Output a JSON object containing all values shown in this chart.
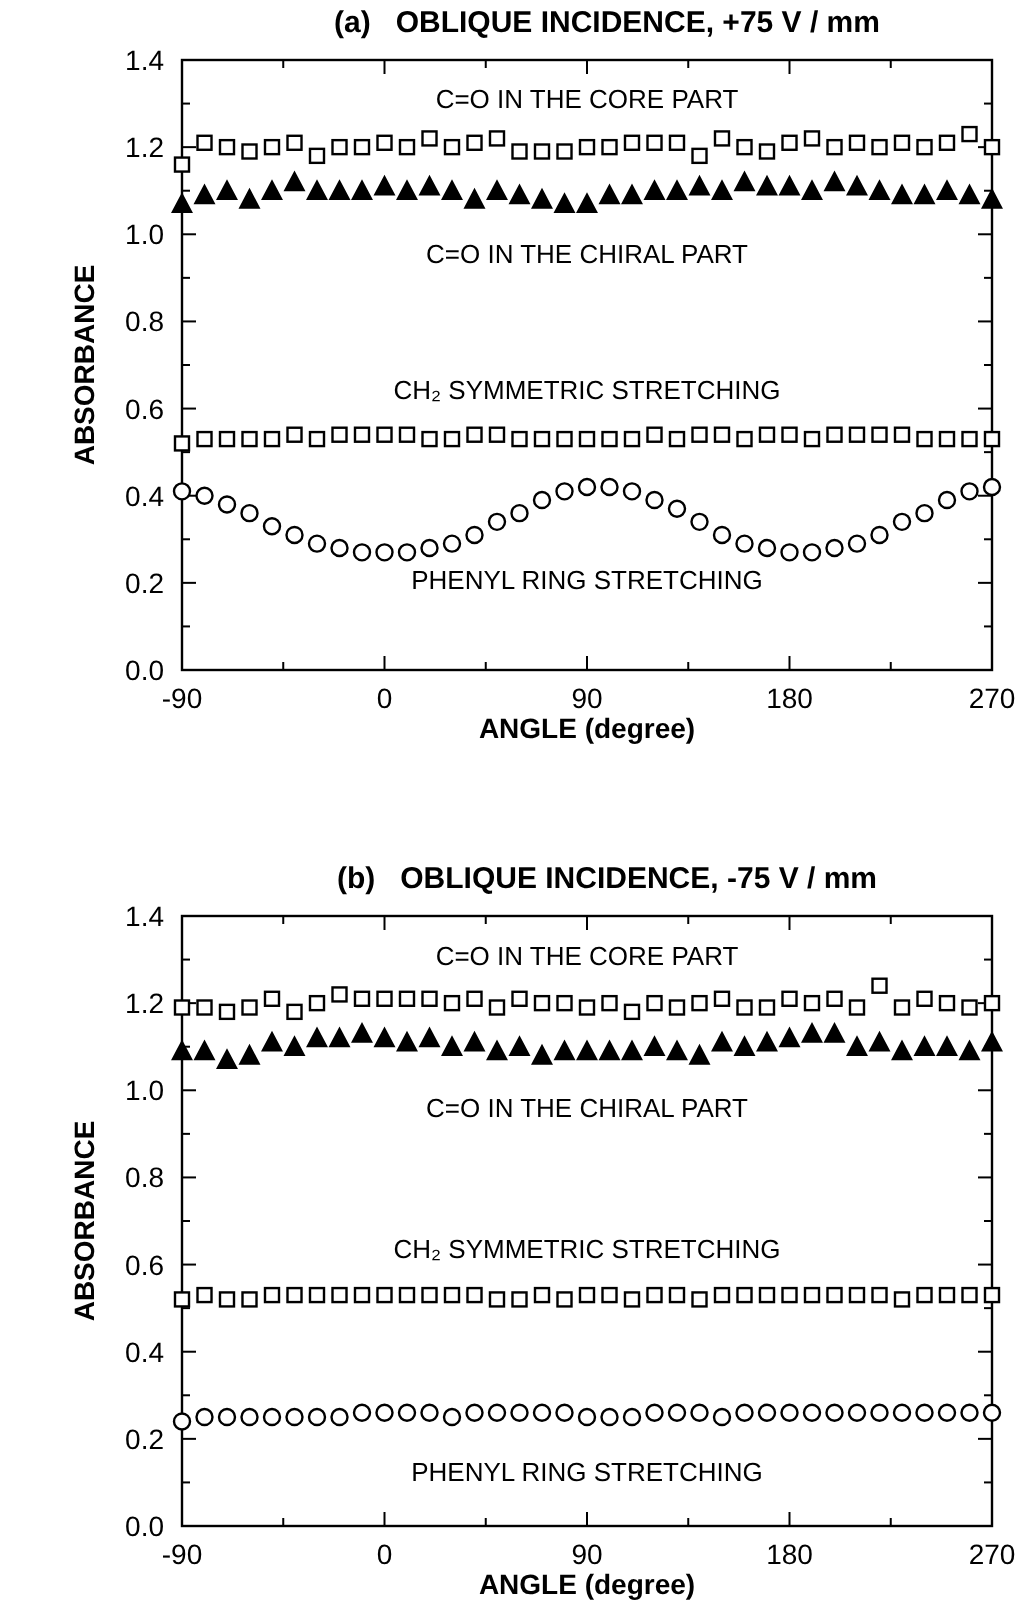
{
  "chart_data": [
    {
      "type": "scatter",
      "title": "(a)   OBLIQUE INCIDENCE, +75 V / mm",
      "xlabel": "ANGLE (degree)",
      "ylabel": "ABSORBANCE",
      "x": [
        -90,
        -80,
        -70,
        -60,
        -50,
        -40,
        -30,
        -20,
        -10,
        0,
        10,
        20,
        30,
        40,
        50,
        60,
        70,
        80,
        90,
        100,
        110,
        120,
        130,
        140,
        150,
        160,
        170,
        180,
        190,
        200,
        210,
        220,
        230,
        240,
        250,
        260,
        270
      ],
      "xlim": [
        -90,
        270
      ],
      "ylim": [
        0,
        1.4
      ],
      "xticks": [
        -90,
        {
          "value": -45,
          "label": null
        },
        0,
        {
          "value": 45,
          "label": null
        },
        90,
        {
          "value": 135,
          "label": null
        },
        180,
        {
          "value": 225,
          "label": null
        },
        270
      ],
      "yticks": [
        {
          "value": 0,
          "label": "0.0"
        },
        {
          "value": 0.1,
          "label": null
        },
        0.2,
        {
          "value": 0.3,
          "label": null
        },
        0.4,
        {
          "value": 0.5,
          "label": null
        },
        0.6,
        {
          "value": 0.7,
          "label": null
        },
        0.8,
        {
          "value": 0.9,
          "label": null
        },
        {
          "value": 1,
          "label": "1.0"
        },
        {
          "value": 1.1,
          "label": null
        },
        1.2,
        {
          "value": 1.3,
          "label": null
        },
        1.4
      ],
      "grid": false,
      "legend": "top",
      "series": [
        {
          "name": "C=O IN THE CORE PART",
          "color": "#000000",
          "marker": "square",
          "values": [
            1.16,
            1.21,
            1.2,
            1.19,
            1.2,
            1.21,
            1.18,
            1.2,
            1.2,
            1.21,
            1.2,
            1.22,
            1.2,
            1.21,
            1.22,
            1.19,
            1.19,
            1.19,
            1.2,
            1.2,
            1.21,
            1.21,
            1.21,
            1.18,
            1.22,
            1.2,
            1.19,
            1.21,
            1.22,
            1.2,
            1.21,
            1.2,
            1.21,
            1.2,
            1.21,
            1.23,
            1.2
          ]
        },
        {
          "name": "C=O IN THE CHIRAL PART",
          "color": "#000000",
          "marker": "triangle",
          "values": [
            1.07,
            1.09,
            1.1,
            1.08,
            1.1,
            1.12,
            1.1,
            1.1,
            1.1,
            1.11,
            1.1,
            1.11,
            1.1,
            1.08,
            1.1,
            1.09,
            1.08,
            1.07,
            1.07,
            1.09,
            1.09,
            1.1,
            1.1,
            1.11,
            1.1,
            1.12,
            1.11,
            1.11,
            1.1,
            1.12,
            1.11,
            1.1,
            1.09,
            1.09,
            1.1,
            1.09,
            1.08
          ]
        },
        {
          "name": "CH₂ SYMMETRIC STRETCHING",
          "color": "#000000",
          "marker": "square",
          "values": [
            0.52,
            0.53,
            0.53,
            0.53,
            0.53,
            0.54,
            0.53,
            0.54,
            0.54,
            0.54,
            0.54,
            0.53,
            0.53,
            0.54,
            0.54,
            0.53,
            0.53,
            0.53,
            0.53,
            0.53,
            0.53,
            0.54,
            0.53,
            0.54,
            0.54,
            0.53,
            0.54,
            0.54,
            0.53,
            0.54,
            0.54,
            0.54,
            0.54,
            0.53,
            0.53,
            0.53,
            0.53
          ]
        },
        {
          "name": "PHENYL RING STRETCHING",
          "color": "#000000",
          "marker": "circle",
          "values": [
            0.41,
            0.4,
            0.38,
            0.36,
            0.33,
            0.31,
            0.29,
            0.28,
            0.27,
            0.27,
            0.27,
            0.28,
            0.29,
            0.31,
            0.34,
            0.36,
            0.39,
            0.41,
            0.42,
            0.42,
            0.41,
            0.39,
            0.37,
            0.34,
            0.31,
            0.29,
            0.28,
            0.27,
            0.27,
            0.28,
            0.29,
            0.31,
            0.34,
            0.36,
            0.39,
            0.41,
            0.42
          ]
        }
      ]
    },
    {
      "type": "scatter",
      "title": "(b)   OBLIQUE INCIDENCE, -75 V / mm",
      "xlabel": "ANGLE (degree)",
      "ylabel": "ABSORBANCE",
      "x": [
        -90,
        -80,
        -70,
        -60,
        -50,
        -40,
        -30,
        -20,
        -10,
        0,
        10,
        20,
        30,
        40,
        50,
        60,
        70,
        80,
        90,
        100,
        110,
        120,
        130,
        140,
        150,
        160,
        170,
        180,
        190,
        200,
        210,
        220,
        230,
        240,
        250,
        260,
        270
      ],
      "xlim": [
        -90,
        270
      ],
      "ylim": [
        0,
        1.4
      ],
      "xticks": [
        -90,
        {
          "value": -45,
          "label": null
        },
        0,
        {
          "value": 45,
          "label": null
        },
        90,
        {
          "value": 135,
          "label": null
        },
        180,
        {
          "value": 225,
          "label": null
        },
        270
      ],
      "yticks": [
        {
          "value": 0,
          "label": "0.0"
        },
        {
          "value": 0.1,
          "label": null
        },
        0.2,
        {
          "value": 0.3,
          "label": null
        },
        0.4,
        {
          "value": 0.5,
          "label": null
        },
        0.6,
        {
          "value": 0.7,
          "label": null
        },
        0.8,
        {
          "value": 0.9,
          "label": null
        },
        {
          "value": 1,
          "label": "1.0"
        },
        {
          "value": 1.1,
          "label": null
        },
        1.2,
        {
          "value": 1.3,
          "label": null
        },
        1.4
      ],
      "grid": false,
      "legend": "top",
      "series": [
        {
          "name": "C=O IN THE CORE PART",
          "color": "#000000",
          "marker": "square",
          "values": [
            1.19,
            1.19,
            1.18,
            1.19,
            1.21,
            1.18,
            1.2,
            1.22,
            1.21,
            1.21,
            1.21,
            1.21,
            1.2,
            1.21,
            1.19,
            1.21,
            1.2,
            1.2,
            1.19,
            1.2,
            1.18,
            1.2,
            1.19,
            1.2,
            1.21,
            1.19,
            1.19,
            1.21,
            1.2,
            1.21,
            1.19,
            1.24,
            1.19,
            1.21,
            1.2,
            1.19,
            1.2
          ]
        },
        {
          "name": "C=O IN THE CHIRAL PART",
          "color": "#000000",
          "marker": "triangle",
          "values": [
            1.09,
            1.09,
            1.07,
            1.08,
            1.11,
            1.1,
            1.12,
            1.12,
            1.13,
            1.12,
            1.11,
            1.12,
            1.1,
            1.11,
            1.09,
            1.1,
            1.08,
            1.09,
            1.09,
            1.09,
            1.09,
            1.1,
            1.09,
            1.08,
            1.11,
            1.1,
            1.11,
            1.12,
            1.13,
            1.13,
            1.1,
            1.11,
            1.09,
            1.1,
            1.1,
            1.09,
            1.11
          ]
        },
        {
          "name": "CH₂ SYMMETRIC STRETCHING",
          "color": "#000000",
          "marker": "square",
          "values": [
            0.52,
            0.53,
            0.52,
            0.52,
            0.53,
            0.53,
            0.53,
            0.53,
            0.53,
            0.53,
            0.53,
            0.53,
            0.53,
            0.53,
            0.52,
            0.52,
            0.53,
            0.52,
            0.53,
            0.53,
            0.52,
            0.53,
            0.53,
            0.52,
            0.53,
            0.53,
            0.53,
            0.53,
            0.53,
            0.53,
            0.53,
            0.53,
            0.52,
            0.53,
            0.53,
            0.53,
            0.53
          ]
        },
        {
          "name": "PHENYL RING STRETCHING",
          "color": "#000000",
          "marker": "circle",
          "values": [
            0.24,
            0.25,
            0.25,
            0.25,
            0.25,
            0.25,
            0.25,
            0.25,
            0.26,
            0.26,
            0.26,
            0.26,
            0.25,
            0.26,
            0.26,
            0.26,
            0.26,
            0.26,
            0.25,
            0.25,
            0.25,
            0.26,
            0.26,
            0.26,
            0.25,
            0.26,
            0.26,
            0.26,
            0.26,
            0.26,
            0.26,
            0.26,
            0.26,
            0.26,
            0.26,
            0.26,
            0.26
          ]
        }
      ]
    }
  ]
}
